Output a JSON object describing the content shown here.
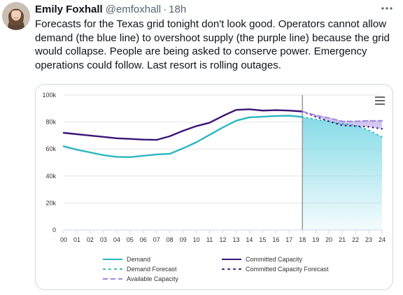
{
  "tweet": {
    "author_name": "Emily Foxhall",
    "handle": "@emfoxhall",
    "separator": "·",
    "time": "18h",
    "text": "Forecasts for the Texas grid tonight don't look good. Operators cannot allow demand (the blue line) to overshoot supply (the purple line) because the grid would collapse. People are being asked to conserve power. Emergency operations could follow. Last resort is rolling outages.",
    "more_icon": "more-horizontal-icon"
  },
  "colors": {
    "demand": "#2ab7c0",
    "committed": "#3b1477",
    "available": "#9f86e0",
    "forecast_fill": "#7fd9e6",
    "grid": "#e6e6e6",
    "now_line": "#999999"
  },
  "chart_data": {
    "type": "line",
    "x_ticks": [
      "00",
      "01",
      "02",
      "03",
      "04",
      "05",
      "06",
      "07",
      "08",
      "09",
      "10",
      "11",
      "12",
      "13",
      "14",
      "15",
      "16",
      "17",
      "18",
      "19",
      "20",
      "21",
      "22",
      "23",
      "24"
    ],
    "y_ticks": [
      "0",
      "20k",
      "40k",
      "60k",
      "80k",
      "100k"
    ],
    "ylim": [
      0,
      100000
    ],
    "xlim": [
      0,
      24
    ],
    "now_hour": 18,
    "grid": true,
    "legend_position": "bottom",
    "series": [
      {
        "name": "Demand",
        "style": "solid",
        "points": [
          [
            0,
            62000
          ],
          [
            1,
            59500
          ],
          [
            2,
            57500
          ],
          [
            3,
            55500
          ],
          [
            4,
            54200
          ],
          [
            5,
            54000
          ],
          [
            6,
            55000
          ],
          [
            7,
            56000
          ],
          [
            8,
            56500
          ],
          [
            9,
            60500
          ],
          [
            10,
            65000
          ],
          [
            11,
            70500
          ],
          [
            12,
            76000
          ],
          [
            13,
            81000
          ],
          [
            14,
            83500
          ],
          [
            15,
            84000
          ],
          [
            16,
            84500
          ],
          [
            17,
            84700
          ],
          [
            18,
            83800
          ]
        ]
      },
      {
        "name": "Committed Capacity",
        "style": "solid",
        "points": [
          [
            0,
            72000
          ],
          [
            1,
            71000
          ],
          [
            2,
            70000
          ],
          [
            3,
            69000
          ],
          [
            4,
            68000
          ],
          [
            5,
            67500
          ],
          [
            6,
            67000
          ],
          [
            7,
            66800
          ],
          [
            8,
            69500
          ],
          [
            9,
            73500
          ],
          [
            10,
            77000
          ],
          [
            11,
            79500
          ],
          [
            12,
            84500
          ],
          [
            13,
            89000
          ],
          [
            14,
            89500
          ],
          [
            15,
            88500
          ],
          [
            16,
            88800
          ],
          [
            17,
            88500
          ],
          [
            18,
            87800
          ]
        ]
      },
      {
        "name": "Demand Forecast",
        "style": "dotted",
        "points": [
          [
            18,
            83800
          ],
          [
            19,
            82000
          ],
          [
            20,
            80500
          ],
          [
            21,
            79000
          ],
          [
            22,
            77500
          ],
          [
            23,
            74000
          ],
          [
            24,
            69000
          ]
        ]
      },
      {
        "name": "Committed Capacity Forecast",
        "style": "dotted",
        "points": [
          [
            18,
            87800
          ],
          [
            19,
            84000
          ],
          [
            20,
            80500
          ],
          [
            21,
            77500
          ],
          [
            22,
            77000
          ],
          [
            23,
            76500
          ],
          [
            24,
            75000
          ]
        ]
      },
      {
        "name": "Available Capacity",
        "style": "dashed",
        "points": [
          [
            18,
            87800
          ],
          [
            19,
            85000
          ],
          [
            20,
            83000
          ],
          [
            21,
            80500
          ],
          [
            22,
            80500
          ],
          [
            23,
            81000
          ],
          [
            24,
            81000
          ]
        ]
      }
    ]
  }
}
